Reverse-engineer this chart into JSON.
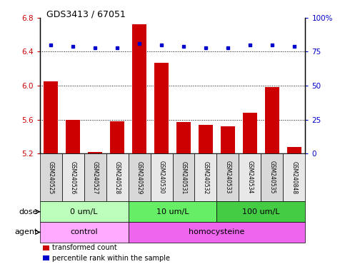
{
  "title": "GDS3413 / 67051",
  "samples": [
    "GSM240525",
    "GSM240526",
    "GSM240527",
    "GSM240528",
    "GSM240529",
    "GSM240530",
    "GSM240531",
    "GSM240532",
    "GSM240533",
    "GSM240534",
    "GSM240535",
    "GSM240848"
  ],
  "bar_values": [
    6.05,
    5.6,
    5.22,
    5.58,
    6.72,
    6.27,
    5.57,
    5.54,
    5.52,
    5.68,
    5.98,
    5.28
  ],
  "dot_values": [
    80,
    79,
    78,
    78,
    81,
    80,
    79,
    78,
    78,
    80,
    80,
    79
  ],
  "ylim": [
    5.2,
    6.8
  ],
  "y2lim": [
    0,
    100
  ],
  "yticks": [
    5.2,
    5.6,
    6.0,
    6.4,
    6.8
  ],
  "y2ticks": [
    0,
    25,
    50,
    75,
    100
  ],
  "bar_color": "#cc0000",
  "dot_color": "#0000cc",
  "grid_color": "#000000",
  "dose_groups": [
    {
      "label": "0 um/L",
      "start": 0,
      "end": 4,
      "color": "#bbffbb"
    },
    {
      "label": "10 um/L",
      "start": 4,
      "end": 8,
      "color": "#66ee66"
    },
    {
      "label": "100 um/L",
      "start": 8,
      "end": 12,
      "color": "#44cc44"
    }
  ],
  "agent_groups": [
    {
      "label": "control",
      "start": 0,
      "end": 4,
      "color": "#ffaaff"
    },
    {
      "label": "homocysteine",
      "start": 4,
      "end": 12,
      "color": "#ee66ee"
    }
  ],
  "dose_label": "dose",
  "agent_label": "agent",
  "legend_bar_label": "transformed count",
  "legend_dot_label": "percentile rank within the sample",
  "background_color": "#ffffff",
  "sample_bg_colors": [
    "#d8d8d8",
    "#e8e8e8"
  ]
}
